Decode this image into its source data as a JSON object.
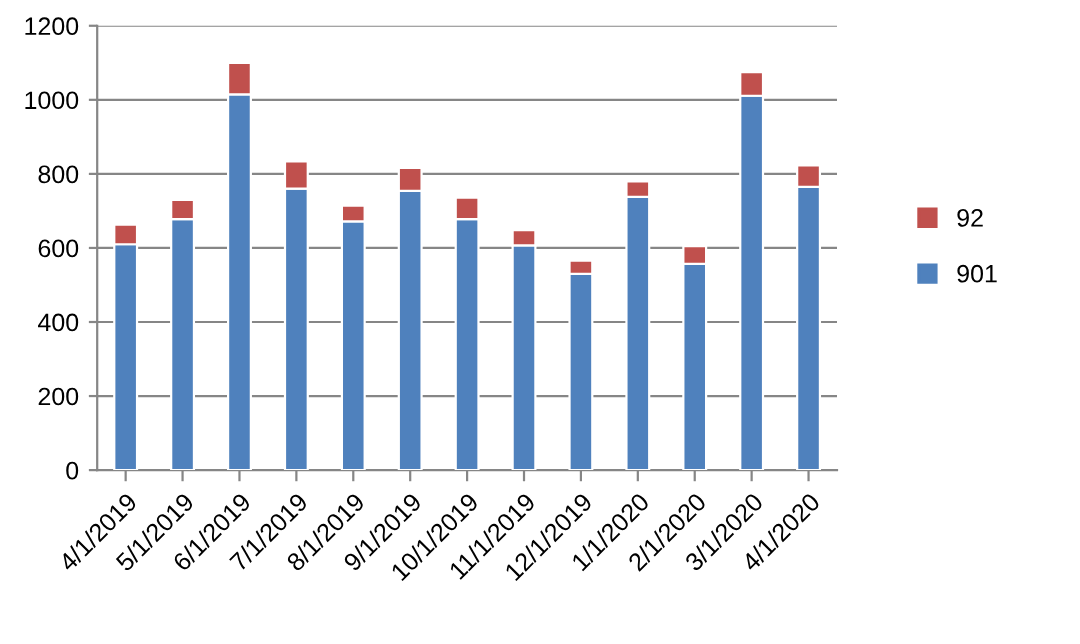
{
  "chart_data": {
    "type": "bar",
    "stacked": true,
    "categories": [
      "4/1/2019",
      "5/1/2019",
      "6/1/2019",
      "7/1/2019",
      "8/1/2019",
      "9/1/2019",
      "10/1/2019",
      "11/1/2019",
      "12/1/2019",
      "1/1/2020",
      "2/1/2020",
      "3/1/2020",
      "4/1/2020"
    ],
    "series": [
      {
        "name": "901",
        "color": "#4f81bd",
        "values": [
          610,
          678,
          1015,
          760,
          672,
          754,
          678,
          607,
          530,
          738,
          557,
          1011,
          765
        ]
      },
      {
        "name": "92",
        "color": "#c0504d",
        "values": [
          53,
          52,
          85,
          74,
          42,
          62,
          58,
          41,
          36,
          42,
          48,
          64,
          58
        ]
      }
    ],
    "ylim": [
      0,
      1200
    ],
    "yticks": [
      0,
      200,
      400,
      600,
      800,
      1000,
      1200
    ],
    "grid": "y",
    "legend": "right"
  }
}
